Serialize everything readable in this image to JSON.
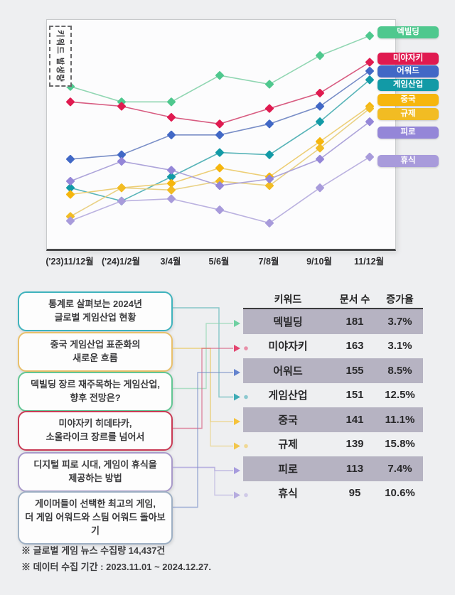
{
  "page": {
    "background": "#eeeff1",
    "footer_notes": [
      "※ 글로벌 게임 뉴스 수집량 14,437건",
      "※ 데이터 수집 기간 : 2023.11.01 ~ 2024.12.27."
    ]
  },
  "chart_data": {
    "type": "line",
    "title": "",
    "ylabel": "키워드 발생량",
    "xlabel": "",
    "x_categories": [
      "('23)11/12월",
      "('24)1/2월",
      "3/4월",
      "5/6월",
      "7/8월",
      "9/10월",
      "11/12월"
    ],
    "ylim": [
      0,
      100
    ],
    "y_units": "relative keyword occurrence (no numeric axis shown)",
    "grid": false,
    "marker": "diamond",
    "legend_position": "right",
    "series": [
      {
        "name": "덱빌딩",
        "color": "#4fc88e",
        "line_color": "#8ad4ae",
        "values": [
          74,
          67,
          67,
          79,
          75,
          88,
          97
        ]
      },
      {
        "name": "미야자키",
        "color": "#e01a50",
        "line_color": "#d6537a",
        "values": [
          67,
          65,
          60,
          57,
          64,
          71,
          85
        ]
      },
      {
        "name": "어워드",
        "color": "#4168c6",
        "line_color": "#7288c4",
        "values": [
          41,
          43,
          52,
          52,
          57,
          65,
          81
        ]
      },
      {
        "name": "게임산업",
        "color": "#129aa6",
        "line_color": "#4fb0b4",
        "values": [
          28,
          22,
          33,
          44,
          43,
          58,
          77
        ]
      },
      {
        "name": "중국",
        "color": "#f6b60d",
        "line_color": "#eccb6e",
        "values": [
          25,
          28,
          30,
          37,
          33,
          49,
          65
        ]
      },
      {
        "name": "규제",
        "color": "#f2bc23",
        "line_color": "#e8cf7e",
        "values": [
          15,
          28,
          27,
          31,
          29,
          46,
          64
        ]
      },
      {
        "name": "피로",
        "color": "#9486d8",
        "line_color": "#a99fd8",
        "values": [
          31,
          40,
          36,
          29,
          32,
          41,
          58
        ]
      },
      {
        "name": "휴식",
        "color": "#a89bdb",
        "line_color": "#b7aede",
        "values": [
          13,
          22,
          23,
          18,
          12,
          28,
          42
        ]
      }
    ]
  },
  "callouts": [
    {
      "lines": [
        "통계로 살펴보는 2024년",
        "글로벌 게임산업 현황"
      ],
      "border": "#3fb3bd",
      "targets": [
        "게임산업"
      ]
    },
    {
      "lines": [
        "중국 게임산업 표준화의",
        "새로운 흐름"
      ],
      "border": "#e9c06b",
      "targets": [
        "중국",
        "규제"
      ]
    },
    {
      "lines": [
        "덱빌딩 장르 재주목하는 게임산업,",
        "향후 전망은?"
      ],
      "border": "#62c694",
      "targets": [
        "덱빌딩"
      ]
    },
    {
      "lines": [
        "미야자키 히데타카,",
        "소울라이크 장르를 넘어서"
      ],
      "border": "#c93b55",
      "targets": [
        "미야자키"
      ]
    },
    {
      "lines": [
        "디지털 피로 시대, 게임이 휴식을",
        "제공하는 방법"
      ],
      "border": "#a89aca",
      "targets": [
        "피로",
        "휴식"
      ]
    },
    {
      "lines": [
        "게이머들이 선택한 최고의 게임,",
        "더 게임 어워드와 스팀 어워드 돌아보기"
      ],
      "border": "#9eb0c4",
      "targets": [
        "어워드"
      ]
    }
  ],
  "table": {
    "headers": [
      "키워드",
      "문서 수",
      "증가율"
    ],
    "rows": [
      {
        "keyword": "덱빌딩",
        "docs": "181",
        "growth": "3.7%"
      },
      {
        "keyword": "미야자키",
        "docs": "163",
        "growth": "3.1%"
      },
      {
        "keyword": "어워드",
        "docs": "155",
        "growth": "8.5%"
      },
      {
        "keyword": "게임산업",
        "docs": "151",
        "growth": "12.5%"
      },
      {
        "keyword": "중국",
        "docs": "141",
        "growth": "11.1%"
      },
      {
        "keyword": "규제",
        "docs": "139",
        "growth": "15.8%"
      },
      {
        "keyword": "피로",
        "docs": "113",
        "growth": "7.4%"
      },
      {
        "keyword": "휴식",
        "docs": "95",
        "growth": "10.6%"
      }
    ]
  }
}
